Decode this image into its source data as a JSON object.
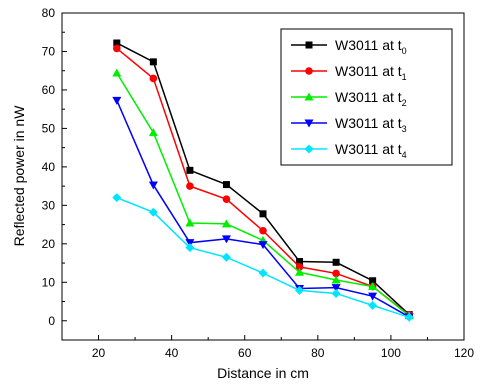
{
  "chart_data": {
    "type": "line",
    "xlabel": "Distance in cm",
    "ylabel": "Reflected power in nW",
    "xlim": [
      10,
      120
    ],
    "ylim": [
      -5,
      80
    ],
    "xticks": [
      20,
      40,
      60,
      80,
      100,
      120
    ],
    "yticks": [
      0,
      10,
      20,
      30,
      40,
      50,
      60,
      70,
      80
    ],
    "grid": false,
    "legend_position": "top-right",
    "x": [
      25,
      35,
      45,
      55,
      65,
      75,
      85,
      95,
      105
    ],
    "series": [
      {
        "name": "W3011 at t",
        "subscript": "0",
        "color": "#000000",
        "marker": "square",
        "values": [
          72.2,
          67.3,
          39.1,
          35.4,
          27.8,
          15.4,
          15.2,
          10.4,
          1.6
        ]
      },
      {
        "name": "W3011 at t",
        "subscript": "1",
        "color": "#ff0000",
        "marker": "circle",
        "values": [
          70.8,
          63.0,
          35.0,
          31.6,
          23.4,
          14.0,
          12.3,
          8.9,
          1.5
        ]
      },
      {
        "name": "W3011 at t",
        "subscript": "2",
        "color": "#00ee00",
        "marker": "triangle-up",
        "values": [
          64.4,
          48.9,
          25.4,
          25.2,
          20.9,
          12.6,
          10.6,
          8.9,
          1.3
        ]
      },
      {
        "name": "W3011 at t",
        "subscript": "3",
        "color": "#0000ff",
        "marker": "triangle-down",
        "values": [
          57.3,
          35.3,
          20.3,
          21.3,
          19.8,
          8.4,
          8.6,
          6.4,
          1.0
        ]
      },
      {
        "name": "W3011 at t",
        "subscript": "4",
        "color": "#00e5ff",
        "marker": "diamond",
        "values": [
          32.0,
          28.2,
          19.0,
          16.5,
          12.4,
          7.9,
          7.1,
          4.0,
          0.9
        ]
      }
    ]
  }
}
